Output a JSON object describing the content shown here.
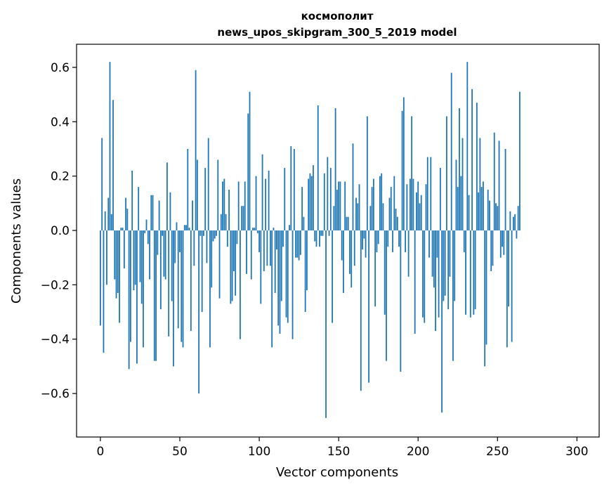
{
  "chart_data": {
    "type": "bar",
    "title": "космополит",
    "subtitle": "news_upos_skipgram_300_5_2019 model",
    "xlabel": "Vector components",
    "ylabel": "Components values",
    "xlim": [
      -15,
      314
    ],
    "ylim": [
      -0.76,
      0.685
    ],
    "xticks": [
      0,
      50,
      100,
      150,
      200,
      250,
      300
    ],
    "yticks": [
      -0.6,
      -0.4,
      -0.2,
      0.0,
      0.2,
      0.4,
      0.6
    ],
    "ytick_labels": [
      "−0.6",
      "−0.4",
      "−0.2",
      "0.0",
      "0.2",
      "0.4",
      "0.6"
    ],
    "bar_color": "#1f77b4",
    "grid": false,
    "values": [
      -0.35,
      0.34,
      -0.45,
      0.07,
      -0.2,
      0.12,
      0.62,
      0.06,
      0.48,
      -0.18,
      -0.25,
      -0.23,
      -0.34,
      0.01,
      0.01,
      -0.14,
      0.12,
      0.08,
      -0.51,
      -0.41,
      0.22,
      -0.22,
      -0.2,
      -0.49,
      0.16,
      -0.19,
      -0.27,
      -0.43,
      -0.01,
      0.04,
      -0.05,
      -0.18,
      0.13,
      0.13,
      -0.48,
      -0.48,
      -0.09,
      0.11,
      -0.29,
      -0.02,
      -0.17,
      -0.18,
      0.25,
      -0.39,
      0.14,
      -0.26,
      -0.5,
      -0.12,
      0.03,
      -0.36,
      -0.08,
      -0.41,
      -0.43,
      0.02,
      0.02,
      0.3,
      0.01,
      -0.37,
      0.11,
      -0.13,
      0.59,
      0.26,
      -0.6,
      -0.02,
      -0.3,
      -0.02,
      0.23,
      -0.12,
      0.34,
      -0.43,
      -0.21,
      -0.04,
      -0.03,
      -0.02,
      0.26,
      -0.25,
      0.06,
      0.18,
      0.19,
      0.06,
      -0.06,
      0.15,
      -0.27,
      -0.26,
      -0.15,
      -0.24,
      -0.05,
      0.18,
      -0.4,
      0.09,
      0.09,
      0.18,
      -0.16,
      0.43,
      0.51,
      -0.18,
      0.01,
      0.01,
      0.2,
      -0.01,
      -0.08,
      -0.27,
      0.28,
      -0.15,
      0.19,
      -0.13,
      0.22,
      -0.13,
      -0.43,
      0.01,
      -0.23,
      -0.07,
      -0.35,
      -0.38,
      -0.26,
      -0.06,
      0.23,
      -0.32,
      -0.34,
      0.02,
      0.31,
      -0.4,
      0.3,
      -0.1,
      -0.1,
      -0.11,
      -0.09,
      0.16,
      0.05,
      -0.3,
      -0.22,
      0.19,
      0.21,
      0.2,
      0.24,
      -0.04,
      -0.06,
      0.46,
      -0.06,
      -0.02,
      -0.02,
      0.21,
      -0.69,
      0.27,
      -0.02,
      0.23,
      -0.34,
      0.09,
      0.45,
      0.15,
      0.18,
      0.18,
      -0.11,
      -0.23,
      0.18,
      0.05,
      0.05,
      -0.16,
      -0.21,
      0.32,
      -0.13,
      0.12,
      0.1,
      0.17,
      -0.59,
      -0.07,
      -0.03,
      -0.1,
      0.42,
      -0.56,
      0.09,
      0.16,
      0.19,
      -0.28,
      -0.08,
      -0.05,
      0.2,
      0.21,
      0.1,
      -0.31,
      -0.48,
      -0.06,
      0.12,
      0.16,
      -0.08,
      0.2,
      0.08,
      0.05,
      -0.06,
      -0.52,
      0.44,
      0.49,
      -0.08,
      0.17,
      -0.17,
      0.19,
      0.42,
      0.19,
      -0.38,
      0.14,
      0.18,
      0.1,
      0.13,
      -0.32,
      -0.34,
      0.17,
      0.27,
      -0.1,
      0.27,
      -0.17,
      -0.21,
      -0.37,
      -0.1,
      -0.32,
      0.23,
      -0.67,
      -0.26,
      -0.24,
      0.42,
      -0.29,
      -0.17,
      0.58,
      -0.48,
      -0.26,
      0.26,
      0.16,
      0.45,
      0.2,
      0.34,
      -0.08,
      -0.31,
      0.62,
      0.13,
      -0.32,
      0.52,
      -0.31,
      -0.29,
      0.47,
      0.14,
      0.34,
      0.16,
      0.18,
      -0.5,
      -0.42,
      0.15,
      0.11,
      -0.15,
      -0.13,
      0.36,
      0.1,
      0.09,
      0.33,
      -0.1,
      -0.06,
      -0.09,
      0.3,
      -0.43,
      -0.28,
      0.07,
      -0.41,
      0.05,
      0.06,
      -0.03,
      0.09,
      0.51
    ]
  }
}
